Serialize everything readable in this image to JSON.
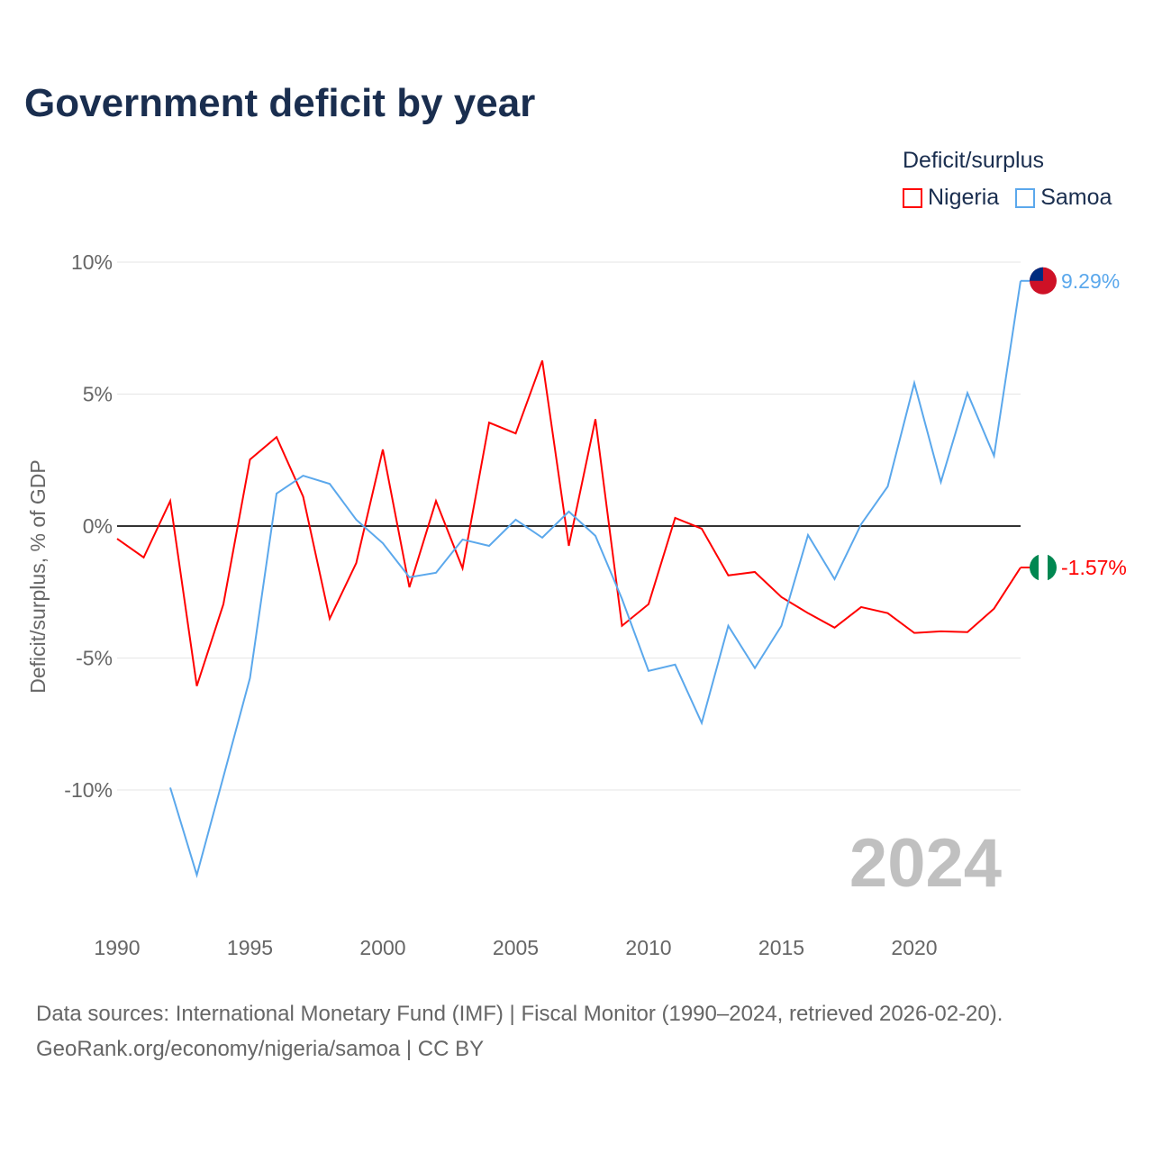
{
  "title": "Government deficit by year",
  "legend": {
    "title": "Deficit/surplus"
  },
  "watermark_year": "2024",
  "source_line1": "Data sources: International Monetary Fund (IMF) | Fiscal Monitor (1990–2024, retrieved 2026-02-20).",
  "source_line2": "GeoRank.org/economy/nigeria/samoa | CC BY",
  "chart_data": {
    "type": "line",
    "title": "Government deficit by year",
    "xlabel": "",
    "ylabel": "Deficit/surplus, % of GDP",
    "xlim": [
      1990,
      2024
    ],
    "ylim": [
      -14,
      10.5
    ],
    "x_ticks": [
      1990,
      1995,
      2000,
      2005,
      2010,
      2015,
      2020
    ],
    "x_tick_labels": [
      "1990",
      "1995",
      "2000",
      "2005",
      "2010",
      "2015",
      "2020"
    ],
    "y_ticks": [
      10,
      5,
      0,
      -5,
      -10
    ],
    "y_tick_labels": [
      "10%",
      "5%",
      "0%",
      "-5%",
      "-10%"
    ],
    "grid": true,
    "legend_position": "top-right",
    "series": [
      {
        "name": "Nigeria",
        "color": "#ff0000",
        "end_label": "-1.57%",
        "start_year": 1990,
        "values": [
          -0.48,
          -1.19,
          0.95,
          -6.06,
          -2.96,
          2.52,
          3.37,
          1.12,
          -3.51,
          -1.4,
          2.9,
          -2.32,
          0.95,
          -1.6,
          3.92,
          3.51,
          6.27,
          -0.75,
          4.05,
          -3.78,
          -2.96,
          0.31,
          -0.1,
          -1.87,
          -1.74,
          -2.69,
          -3.3,
          -3.85,
          -3.07,
          -3.3,
          -4.05,
          -3.99,
          -4.02,
          -3.13,
          -1.57
        ]
      },
      {
        "name": "Samoa",
        "color": "#5ba8ec",
        "end_label": "9.29%",
        "start_year": 1992,
        "values": [
          -9.91,
          -13.22,
          -9.5,
          -5.76,
          1.23,
          1.91,
          1.6,
          0.24,
          -0.65,
          -1.94,
          -1.77,
          -0.51,
          -0.75,
          0.24,
          -0.44,
          0.55,
          -0.37,
          -2.76,
          -5.49,
          -5.25,
          -7.46,
          -3.78,
          -5.38,
          -3.78,
          -0.34,
          -2.01,
          0.07,
          1.5,
          5.42,
          1.67,
          5.04,
          2.66,
          9.29
        ]
      }
    ]
  }
}
